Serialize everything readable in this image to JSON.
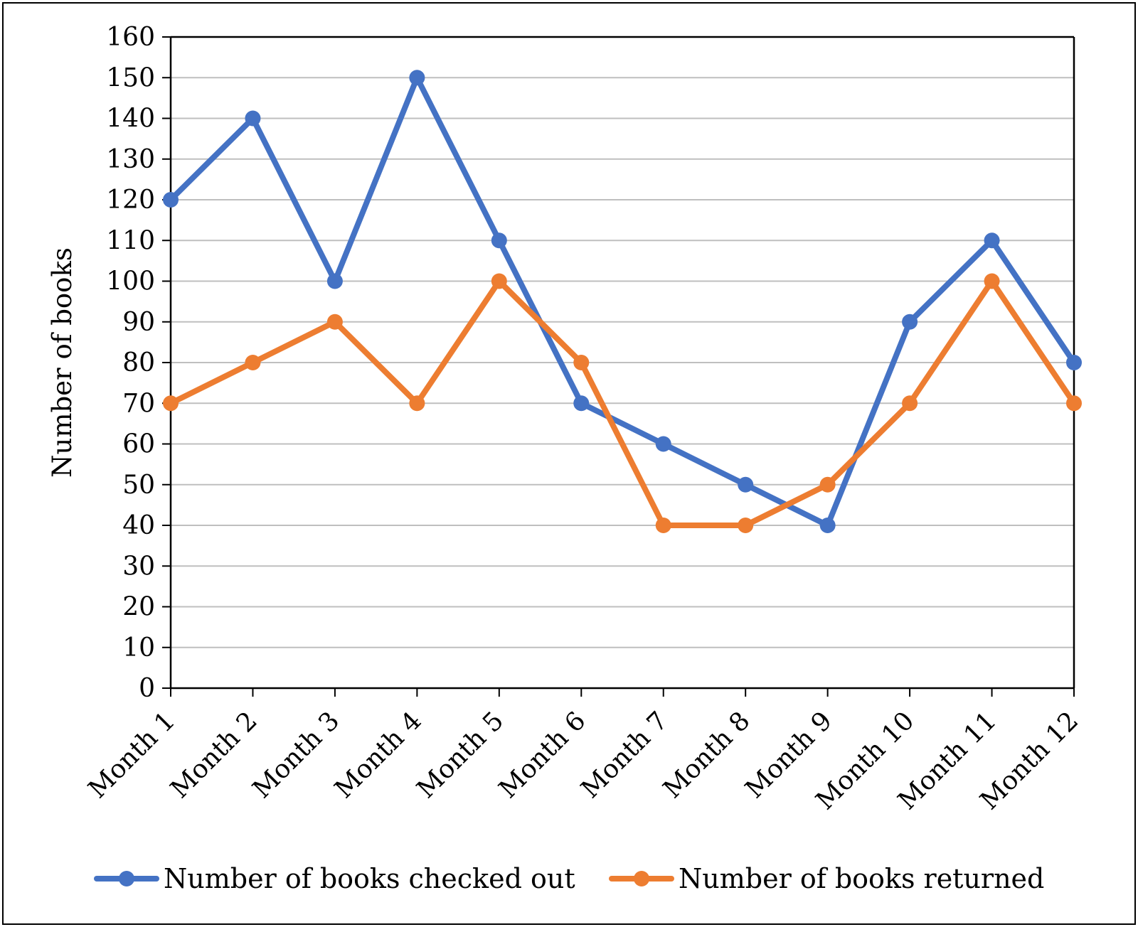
{
  "chart_data": {
    "type": "line",
    "title": "",
    "xlabel": "",
    "ylabel": "Number of books",
    "ylim": [
      0,
      160
    ],
    "ytick_step": 10,
    "grid": true,
    "legend_position": "bottom",
    "categories": [
      "Month 1",
      "Month 2",
      "Month 3",
      "Month 4",
      "Month 5",
      "Month 6",
      "Month 7",
      "Month 8",
      "Month 9",
      "Month 10",
      "Month 11",
      "Month 12"
    ],
    "series": [
      {
        "name": "Number of books checked out",
        "color": "#4472C4",
        "values": [
          120,
          140,
          100,
          150,
          110,
          70,
          60,
          50,
          40,
          90,
          110,
          80
        ]
      },
      {
        "name": "Number of books returned",
        "color": "#ED7D31",
        "values": [
          70,
          80,
          90,
          70,
          100,
          80,
          40,
          40,
          50,
          70,
          100,
          70
        ]
      }
    ]
  }
}
